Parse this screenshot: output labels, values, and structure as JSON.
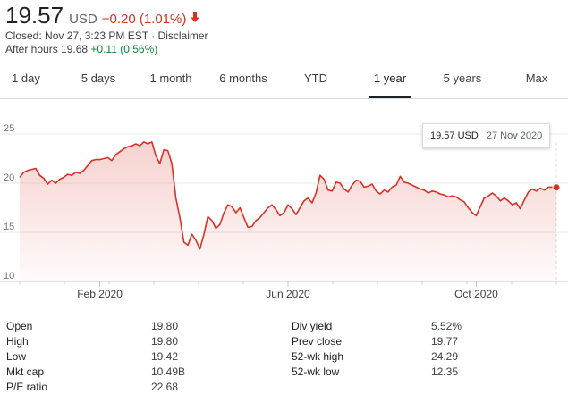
{
  "quote": {
    "price": "19.57",
    "currency": "USD",
    "change": "−0.20 (1.01%)",
    "closed_line": "Closed: Nov 27, 3:23 PM EST",
    "separator": "·",
    "disclaimer": "Disclaimer",
    "after_hours_label": "After hours 19.68",
    "after_hours_change": "+0.11 (0.56%)",
    "change_color": "#d93025",
    "after_hours_color": "#188038"
  },
  "tabs": [
    {
      "label": "1 day"
    },
    {
      "label": "5 days"
    },
    {
      "label": "1 month"
    },
    {
      "label": "6 months"
    },
    {
      "label": "YTD"
    },
    {
      "label": "1 year"
    },
    {
      "label": "5 years"
    },
    {
      "label": "Max"
    }
  ],
  "active_tab": "1 year",
  "tooltip": {
    "value": "19.57 USD",
    "date": "27 Nov 2020"
  },
  "chart_data": {
    "type": "area",
    "ylim": [
      10,
      25
    ],
    "y_ticks": [
      "25",
      "20",
      "15",
      "10"
    ],
    "x_tick_labels": [
      "Feb 2020",
      "Jun 2020",
      "Oct 2020"
    ],
    "line_color": "#d93025",
    "grid": true,
    "values": [
      20.6,
      21.1,
      21.3,
      21.4,
      21.5,
      20.8,
      20.5,
      19.9,
      20.3,
      20.0,
      20.4,
      20.6,
      20.9,
      20.8,
      21.1,
      21.0,
      21.3,
      21.8,
      22.3,
      22.4,
      22.4,
      22.5,
      22.6,
      22.3,
      22.9,
      23.2,
      23.5,
      23.7,
      23.8,
      24.0,
      23.8,
      24.2,
      24.0,
      24.2,
      22.8,
      22.0,
      23.4,
      23.3,
      22.0,
      18.5,
      16.5,
      14.0,
      13.7,
      14.8,
      14.2,
      13.3,
      14.8,
      16.6,
      16.2,
      15.4,
      15.8,
      17.0,
      17.8,
      17.6,
      17.0,
      17.5,
      16.5,
      15.5,
      15.6,
      16.2,
      16.5,
      17.0,
      17.5,
      17.8,
      17.3,
      16.7,
      17.0,
      17.8,
      17.4,
      16.8,
      17.5,
      18.2,
      18.5,
      18.0,
      19.0,
      20.8,
      20.4,
      19.3,
      19.2,
      20.1,
      20.0,
      19.4,
      19.1,
      19.8,
      20.3,
      20.2,
      19.6,
      19.7,
      19.9,
      19.2,
      18.9,
      19.3,
      19.1,
      19.6,
      19.8,
      20.7,
      20.1,
      20.0,
      19.8,
      19.6,
      19.4,
      19.3,
      19.0,
      19.2,
      19.1,
      18.9,
      18.8,
      18.6,
      18.7,
      18.6,
      18.3,
      18.1,
      17.5,
      17.0,
      16.7,
      17.6,
      18.5,
      18.7,
      19.0,
      18.7,
      18.2,
      18.5,
      18.2,
      17.8,
      18.0,
      17.4,
      18.3,
      19.1,
      19.4,
      19.2,
      19.5,
      19.3,
      19.6,
      19.6,
      19.57
    ]
  },
  "stats": {
    "left": [
      {
        "label": "Open",
        "value": "19.80"
      },
      {
        "label": "High",
        "value": "19.80"
      },
      {
        "label": "Low",
        "value": "19.42"
      },
      {
        "label": "Mkt cap",
        "value": "10.49B"
      },
      {
        "label": "P/E ratio",
        "value": "22.68"
      }
    ],
    "right": [
      {
        "label": "Div yield",
        "value": "5.52%"
      },
      {
        "label": "Prev close",
        "value": "19.77"
      },
      {
        "label": "52-wk high",
        "value": "24.29"
      },
      {
        "label": "52-wk low",
        "value": "12.35"
      }
    ]
  }
}
